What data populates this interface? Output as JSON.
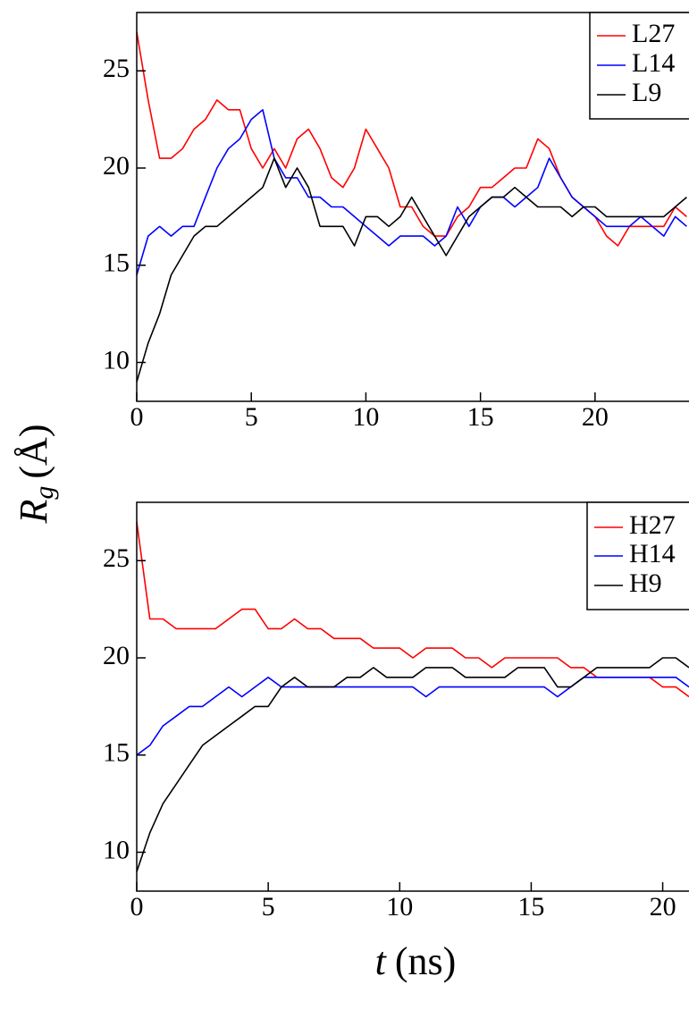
{
  "y_label": {
    "symbol": "R",
    "subscript": "g",
    "unit": "(Å)"
  },
  "x_label": {
    "symbol": "t",
    "unit": "(ns)"
  },
  "chart_data": [
    {
      "type": "line",
      "xlim": [
        0,
        24.1
      ],
      "ylim": [
        8,
        28
      ],
      "xticks": [
        0,
        5,
        10,
        15,
        20
      ],
      "yticks": [
        10,
        15,
        20,
        25
      ],
      "legend": "top-right",
      "x": [
        0,
        0.5,
        1,
        1.5,
        2,
        2.5,
        3,
        3.5,
        4,
        4.5,
        5,
        5.5,
        6,
        6.5,
        7,
        7.5,
        8,
        8.5,
        9,
        9.5,
        10,
        10.5,
        11,
        11.5,
        12,
        12.5,
        13,
        13.5,
        14,
        14.5,
        15,
        15.5,
        16,
        16.5,
        17,
        17.5,
        18,
        18.5,
        19,
        19.5,
        20,
        20.5,
        21,
        21.5,
        22,
        22.5,
        23,
        23.5,
        24
      ],
      "series": [
        {
          "name": "L27",
          "color": "#ff0000",
          "values": [
            27,
            23.5,
            20.5,
            20.5,
            21,
            22,
            22.5,
            23.5,
            23,
            23,
            21,
            20,
            21,
            20,
            21.5,
            22,
            21,
            19.5,
            19,
            20,
            22,
            21,
            20,
            18,
            18,
            17,
            16.5,
            16.5,
            17.5,
            18,
            19,
            19,
            19.5,
            20,
            20,
            21.5,
            21,
            19.5,
            18.5,
            18,
            17.5,
            16.5,
            16,
            17,
            17,
            17,
            17,
            18,
            17.5
          ]
        },
        {
          "name": "L14",
          "color": "#0000ff",
          "values": [
            14.5,
            16.5,
            17,
            16.5,
            17,
            17,
            18.5,
            20,
            21,
            21.5,
            22.5,
            23,
            20.5,
            19.5,
            19.5,
            18.5,
            18.5,
            18,
            18,
            17.5,
            17,
            16.5,
            16,
            16.5,
            16.5,
            16.5,
            16,
            16.5,
            18,
            17,
            18,
            18.5,
            18.5,
            18,
            18.5,
            19,
            20.5,
            19.5,
            18.5,
            18,
            17.5,
            17,
            17,
            17,
            17.5,
            17,
            16.5,
            17.5,
            17
          ]
        },
        {
          "name": "L9",
          "color": "#000000",
          "values": [
            9,
            11,
            12.5,
            14.5,
            15.5,
            16.5,
            17,
            17,
            17.5,
            18,
            18.5,
            19,
            20.5,
            19,
            20,
            19,
            17,
            17,
            17,
            16,
            17.5,
            17.5,
            17,
            17.5,
            18.5,
            17.5,
            16.5,
            15.5,
            16.5,
            17.5,
            18,
            18.5,
            18.5,
            19,
            18.5,
            18,
            18,
            18,
            17.5,
            18,
            18,
            17.5,
            17.5,
            17.5,
            17.5,
            17.5,
            17.5,
            18,
            18.5
          ]
        }
      ]
    },
    {
      "type": "line",
      "xlim": [
        0,
        21
      ],
      "ylim": [
        8,
        28
      ],
      "xticks": [
        0,
        5,
        10,
        15,
        20
      ],
      "yticks": [
        10,
        15,
        20,
        25
      ],
      "legend": "top-right",
      "x": [
        0,
        0.5,
        1,
        1.5,
        2,
        2.5,
        3,
        3.5,
        4,
        4.5,
        5,
        5.5,
        6,
        6.5,
        7,
        7.5,
        8,
        8.5,
        9,
        9.5,
        10,
        10.5,
        11,
        11.5,
        12,
        12.5,
        13,
        13.5,
        14,
        14.5,
        15,
        15.5,
        16,
        16.5,
        17,
        17.5,
        18,
        18.5,
        19,
        19.5,
        20,
        20.5,
        21
      ],
      "series": [
        {
          "name": "H27",
          "color": "#ff0000",
          "values": [
            27,
            22,
            22,
            21.5,
            21.5,
            21.5,
            21.5,
            22,
            22.5,
            22.5,
            21.5,
            21.5,
            22,
            21.5,
            21.5,
            21,
            21,
            21,
            20.5,
            20.5,
            20.5,
            20,
            20.5,
            20.5,
            20.5,
            20,
            20,
            19.5,
            20,
            20,
            20,
            20,
            20,
            19.5,
            19.5,
            19,
            19,
            19,
            19,
            19,
            18.5,
            18.5,
            18
          ]
        },
        {
          "name": "H14",
          "color": "#0000ff",
          "values": [
            15,
            15.5,
            16.5,
            17,
            17.5,
            17.5,
            18,
            18.5,
            18,
            18.5,
            19,
            18.5,
            18.5,
            18.5,
            18.5,
            18.5,
            18.5,
            18.5,
            18.5,
            18.5,
            18.5,
            18.5,
            18,
            18.5,
            18.5,
            18.5,
            18.5,
            18.5,
            18.5,
            18.5,
            18.5,
            18.5,
            18,
            18.5,
            19,
            19,
            19,
            19,
            19,
            19,
            19,
            19,
            18.5
          ]
        },
        {
          "name": "H9",
          "color": "#000000",
          "values": [
            9,
            11,
            12.5,
            13.5,
            14.5,
            15.5,
            16,
            16.5,
            17,
            17.5,
            17.5,
            18.5,
            19,
            18.5,
            18.5,
            18.5,
            19,
            19,
            19.5,
            19,
            19,
            19,
            19.5,
            19.5,
            19.5,
            19,
            19,
            19,
            19,
            19.5,
            19.5,
            19.5,
            18.5,
            18.5,
            19,
            19.5,
            19.5,
            19.5,
            19.5,
            19.5,
            20,
            20,
            19.5
          ]
        }
      ]
    }
  ]
}
